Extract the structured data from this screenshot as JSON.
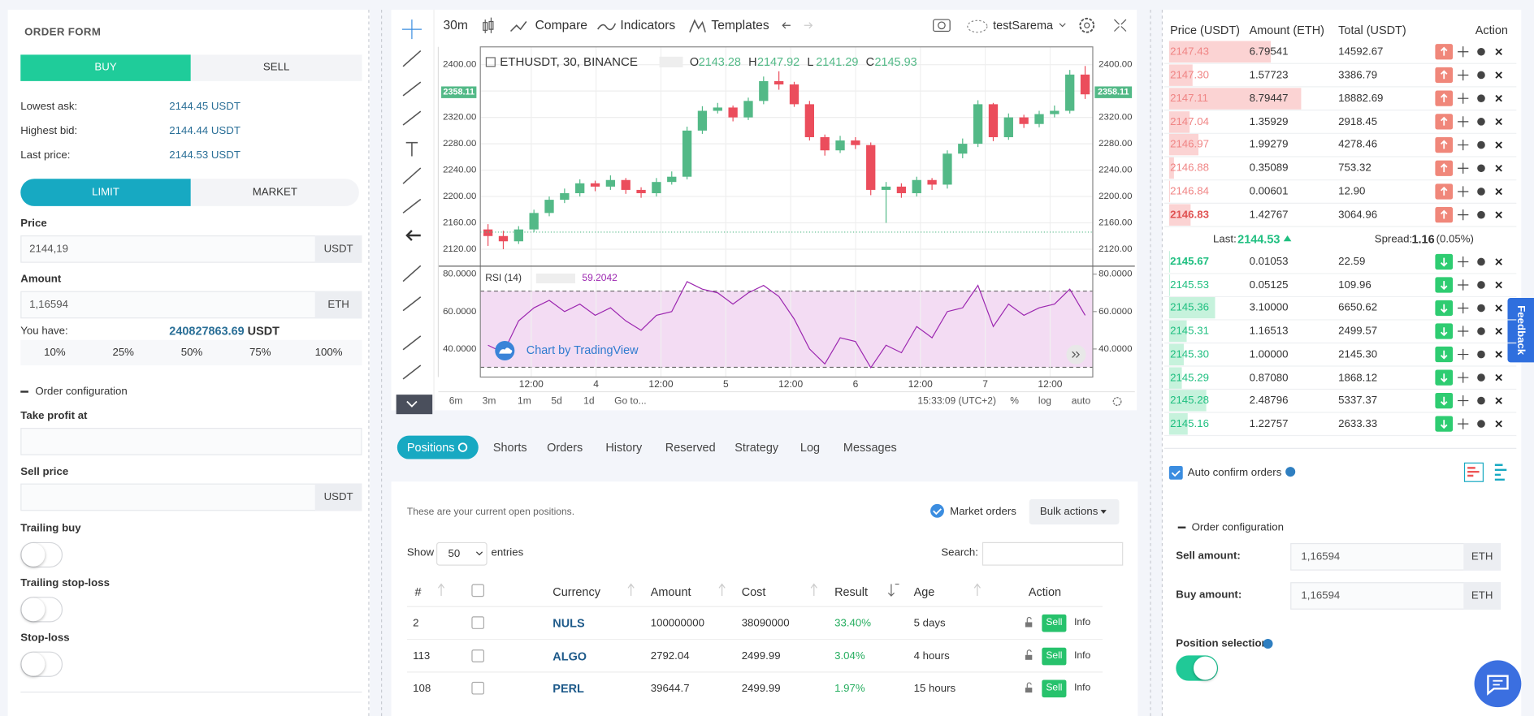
{
  "order_form": {
    "title": "ORDER FORM",
    "sides": [
      "BUY",
      "SELL"
    ],
    "info": [
      {
        "label": "Lowest ask:",
        "value": "2144.45 USDT"
      },
      {
        "label": "Highest bid:",
        "value": "2144.44 USDT"
      },
      {
        "label": "Last price:",
        "value": "2144.53 USDT"
      }
    ],
    "order_types": [
      "LIMIT",
      "MARKET"
    ],
    "price": {
      "label": "Price",
      "value": "2144,19",
      "unit": "USDT"
    },
    "amount": {
      "label": "Amount",
      "value": "1,16594",
      "unit": "ETH"
    },
    "balance": {
      "label": "You have:",
      "value": "240827863.69",
      "unit": "USDT"
    },
    "percentages": [
      "10%",
      "25%",
      "50%",
      "75%",
      "100%"
    ],
    "config_title": "Order configuration",
    "take_profit": {
      "label": "Take profit at"
    },
    "sell_price": {
      "label": "Sell price",
      "unit": "USDT"
    },
    "toggles": [
      "Trailing buy",
      "Trailing stop-loss",
      "Stop-loss"
    ]
  },
  "toolbar": {
    "interval": "30m",
    "compare": "Compare",
    "indicators": "Indicators",
    "templates": "Templates",
    "user": "testSarema"
  },
  "chart_data": [
    {
      "type": "candlestick",
      "title": "ETHUSDT, 30, BINANCE",
      "legend": [
        {
          "label": "O",
          "value": 2143.28
        },
        {
          "label": "H",
          "value": 2147.92
        },
        {
          "label": "L",
          "value": 2141.29
        },
        {
          "label": "C",
          "value": 2145.93
        }
      ],
      "price_tag": 2358.11,
      "xticks": [
        "12:00",
        "4",
        "12:00",
        "5",
        "12:00",
        "6",
        "12:00",
        "7",
        "12:00"
      ],
      "ylim": [
        2095,
        2427
      ],
      "yticks": [
        {
          "value": 2400,
          "label": "2400.00"
        },
        {
          "value": 2360,
          "label": "2360.00"
        },
        {
          "value": 2320,
          "label": "2320.00"
        },
        {
          "value": 2280,
          "label": "2280.00"
        },
        {
          "value": 2240,
          "label": "2240.00"
        },
        {
          "value": 2200,
          "label": "2200.00"
        },
        {
          "value": 2160,
          "label": "2160.00"
        },
        {
          "value": 2120,
          "label": "2120.00"
        }
      ],
      "up_color": "#53b987",
      "down_color": "#eb4d5c",
      "grid": true,
      "open": [
        2150,
        2140,
        2132,
        2150,
        2175,
        2195,
        2205,
        2220,
        2215,
        2225,
        2210,
        2205,
        2222,
        2230,
        2300,
        2330,
        2335,
        2320,
        2345,
        2375,
        2370,
        2340,
        2290,
        2270,
        2285,
        2278,
        2210,
        2215,
        2205,
        2225,
        2218,
        2265,
        2280,
        2340,
        2290,
        2320,
        2310,
        2325,
        2330,
        2385
      ],
      "high": [
        2158,
        2148,
        2155,
        2180,
        2200,
        2212,
        2226,
        2224,
        2232,
        2228,
        2214,
        2228,
        2238,
        2306,
        2337,
        2342,
        2338,
        2350,
        2382,
        2390,
        2374,
        2345,
        2294,
        2292,
        2290,
        2282,
        2222,
        2220,
        2230,
        2228,
        2270,
        2288,
        2346,
        2342,
        2326,
        2324,
        2330,
        2338,
        2392,
        2398
      ],
      "low": [
        2125,
        2120,
        2128,
        2146,
        2170,
        2190,
        2200,
        2208,
        2210,
        2204,
        2198,
        2200,
        2218,
        2226,
        2295,
        2326,
        2314,
        2316,
        2340,
        2362,
        2336,
        2285,
        2262,
        2266,
        2272,
        2202,
        2160,
        2198,
        2200,
        2210,
        2212,
        2258,
        2275,
        2284,
        2286,
        2304,
        2305,
        2320,
        2326,
        2348
      ],
      "close": [
        2140,
        2132,
        2150,
        2175,
        2195,
        2205,
        2220,
        2215,
        2225,
        2210,
        2205,
        2222,
        2230,
        2300,
        2330,
        2335,
        2320,
        2345,
        2375,
        2370,
        2340,
        2290,
        2270,
        2285,
        2278,
        2210,
        2215,
        2205,
        2225,
        2218,
        2265,
        2280,
        2340,
        2290,
        2320,
        2310,
        2325,
        2330,
        2385,
        2355
      ]
    },
    {
      "type": "line",
      "name": "RSI (14)",
      "current_value": 59.2042,
      "color": "#9c27b0",
      "values": [
        42,
        38,
        55,
        62,
        66,
        60,
        64,
        58,
        62,
        55,
        50,
        58,
        60,
        76,
        72,
        70,
        64,
        70,
        74,
        68,
        56,
        40,
        32,
        46,
        44,
        30,
        42,
        38,
        52,
        46,
        60,
        62,
        74,
        52,
        64,
        58,
        62,
        64,
        72,
        58
      ],
      "ylim": [
        25,
        84
      ],
      "yticks": [
        {
          "value": 80,
          "label": "80.0000"
        },
        {
          "value": 60,
          "label": "60.0000"
        },
        {
          "value": 40,
          "label": "40.0000"
        }
      ]
    }
  ],
  "chart_footer": {
    "ranges": [
      "6m",
      "3m",
      "1m",
      "5d",
      "1d"
    ],
    "goto": "Go to...",
    "time": "15:33:09 (UTC+2)",
    "options": [
      "%",
      "log",
      "auto"
    ],
    "watermark": "Chart by TradingView"
  },
  "tabs": [
    "Positions",
    "Shorts",
    "Orders",
    "History",
    "Reserved",
    "Strategy",
    "Log",
    "Messages"
  ],
  "positions": {
    "note": "These are your current open positions.",
    "market_orders": "Market orders",
    "bulk": "Bulk actions",
    "show": "Show",
    "page_size": "50",
    "entries": "entries",
    "search": "Search:",
    "columns": [
      "#",
      "Currency",
      "Amount",
      "Cost",
      "Result",
      "Age",
      "Action"
    ],
    "rows": [
      [
        "2",
        "NULS",
        "100000000",
        "38090000",
        "33.40%",
        "5 days"
      ],
      [
        "113",
        "ALGO",
        "2792.04",
        "2499.99",
        "3.04%",
        "4 hours"
      ],
      [
        "108",
        "PERL",
        "39644.7",
        "2499.99",
        "1.97%",
        "15 hours"
      ]
    ],
    "sell": "Sell",
    "info": "Info"
  },
  "order_book": {
    "columns": [
      "Price (USDT)",
      "Amount (ETH)",
      "Total (USDT)",
      "Action"
    ],
    "asks": [
      [
        "2147.43",
        "6.79541",
        "14592.67"
      ],
      [
        "2147.30",
        "1.57723",
        "3386.79"
      ],
      [
        "2147.11",
        "8.79447",
        "18882.69"
      ],
      [
        "2147.04",
        "1.35929",
        "2918.45"
      ],
      [
        "2146.97",
        "1.99279",
        "4278.46"
      ],
      [
        "2146.88",
        "0.35089",
        "753.32"
      ],
      [
        "2146.84",
        "0.00601",
        "12.90"
      ],
      [
        "2146.83",
        "1.42767",
        "3064.96"
      ]
    ],
    "last_label": "Last:",
    "last": "2144.53",
    "spread_label": "Spread:",
    "spread": "1.16",
    "spread_pct": "(0.05%)",
    "bids": [
      [
        "2145.67",
        "0.01053",
        "22.59"
      ],
      [
        "2145.53",
        "0.05125",
        "109.96"
      ],
      [
        "2145.36",
        "3.10000",
        "6650.62"
      ],
      [
        "2145.31",
        "1.16513",
        "2499.57"
      ],
      [
        "2145.30",
        "1.00000",
        "2145.30"
      ],
      [
        "2145.29",
        "0.87080",
        "1868.12"
      ],
      [
        "2145.28",
        "2.48796",
        "5337.37"
      ],
      [
        "2145.16",
        "1.22757",
        "2633.33"
      ]
    ]
  },
  "settings": {
    "auto_confirm": "Auto confirm orders",
    "config_title": "Order configuration",
    "sell_amount": {
      "label": "Sell amount:",
      "value": "1,16594",
      "unit": "ETH"
    },
    "buy_amount": {
      "label": "Buy amount:",
      "value": "1,16594",
      "unit": "ETH"
    },
    "position_selection": "Position selection"
  },
  "feedback": "Feedback"
}
